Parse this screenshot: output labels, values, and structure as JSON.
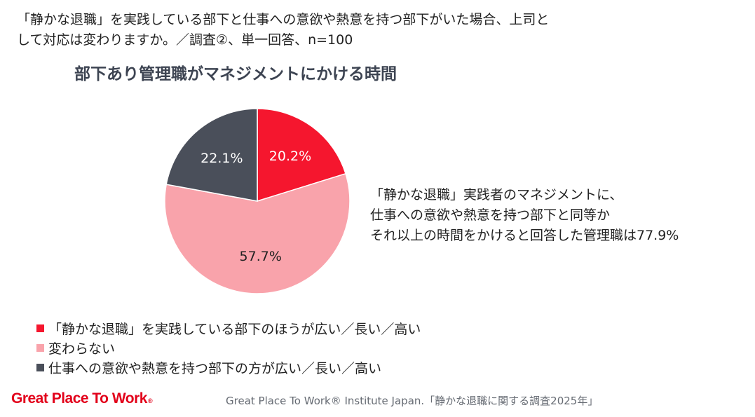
{
  "question": "「静かな退職」を実践している部下と仕事への意欲や熱意を持つ部下がいた場合、上司として対応は変わりますか。／調査②、単一回答、n=100",
  "callout": {
    "lines": [
      "「静かな退職」実践者のマネジメントに、",
      "仕事への意欲や熱意を持つ部下と同等か",
      "それ以上の時間をかけると回答した管理職は77.9%"
    ]
  },
  "footer": {
    "logo_text": "Great Place To Work",
    "logo_mark": "®",
    "source": "Great Place To Work® Institute Japan.「静かな退職に関する調査2025年」"
  },
  "colors": {
    "red": "#f5162e",
    "pink": "#f9a3ab",
    "gray": "#4a4f5a",
    "brand": "#e2001a"
  },
  "chart_data": {
    "type": "pie",
    "title": "部下あり管理職がマネジメントにかける時間",
    "slices": [
      {
        "label": "「静かな退職」を実践している部下のほうが広い／長い／高い",
        "value": 20.2,
        "display": "20.2%",
        "color": "#f5162e",
        "label_color": "#ffffff"
      },
      {
        "label": "変わらない",
        "value": 57.7,
        "display": "57.7%",
        "color": "#f9a3ab",
        "label_color": "#222222"
      },
      {
        "label": "仕事への意欲や熱意を持つ部下の方が広い／長い／高い",
        "value": 22.1,
        "display": "22.1%",
        "color": "#4a4f5a",
        "label_color": "#ffffff"
      }
    ],
    "start": "12 o'clock",
    "direction": "clockwise",
    "legend_position": "bottom-left"
  }
}
